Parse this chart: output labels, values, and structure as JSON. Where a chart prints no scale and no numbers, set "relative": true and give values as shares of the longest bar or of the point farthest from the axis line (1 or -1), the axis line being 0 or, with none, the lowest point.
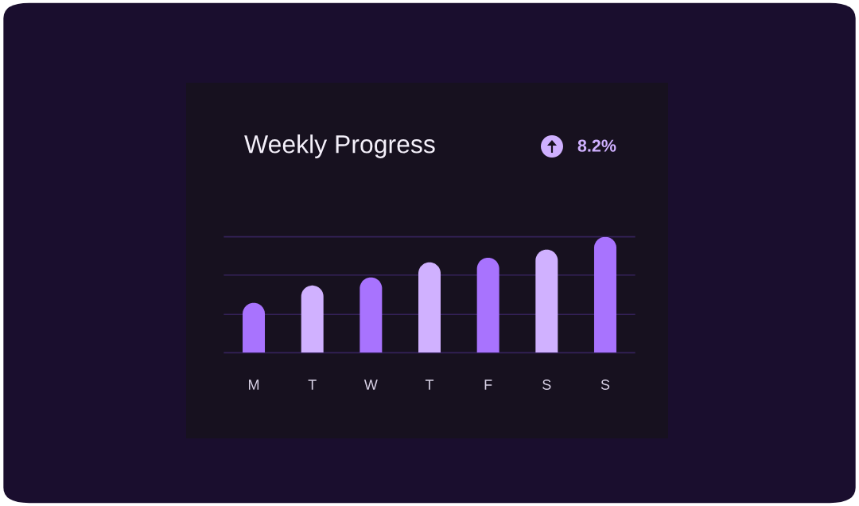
{
  "chart_data": {
    "type": "bar",
    "title": "Weekly Progress",
    "annotations": [
      "8.2%"
    ],
    "categories": [
      "M",
      "T",
      "W",
      "T",
      "F",
      "S",
      "S"
    ],
    "values": [
      0.43,
      0.58,
      0.65,
      0.78,
      0.82,
      0.89,
      1
    ],
    "colors": [
      "#a873fe",
      "#d0b1ff",
      "#a873fe",
      "#d0b1ff",
      "#a873fe",
      "#d0b1ff",
      "#a873fe"
    ],
    "relative": true,
    "ref_lines": [
      {
        "axis": "y",
        "value": 0.33,
        "color": "#35225a"
      },
      {
        "axis": "y",
        "value": 0.67,
        "color": "#35225a"
      },
      {
        "axis": "y",
        "value": 1,
        "color": "#35225a"
      }
    ]
  }
}
